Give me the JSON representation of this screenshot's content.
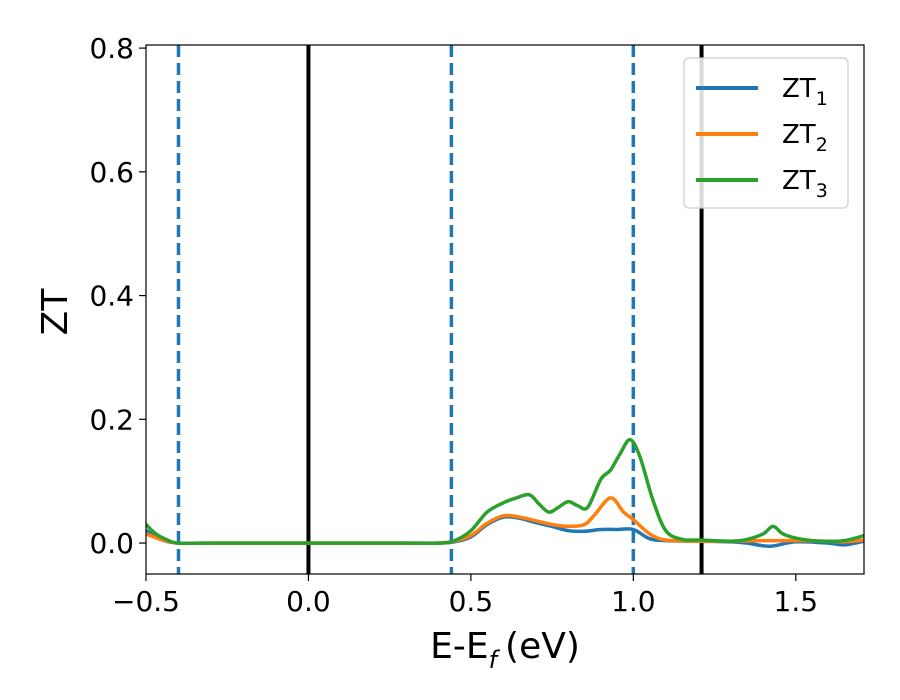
{
  "chart_data": {
    "type": "line",
    "xlabel": "E-E",
    "xlabel_sub": "f",
    "xlabel_unit": "(eV)",
    "ylabel": "ZT",
    "xlim": [
      -0.5,
      1.71
    ],
    "ylim": [
      -0.05,
      0.805
    ],
    "xticks": [
      -0.5,
      0.0,
      0.5,
      1.0,
      1.5
    ],
    "xtick_labels": [
      "−0.5",
      "0.0",
      "0.5",
      "1.0",
      "1.5"
    ],
    "yticks": [
      0.0,
      0.2,
      0.4,
      0.6,
      0.8
    ],
    "ytick_labels": [
      "0.0",
      "0.2",
      "0.4",
      "0.6",
      "0.8"
    ],
    "grid": false,
    "legend_placement": "top-right",
    "vlines": [
      {
        "x": -0.4,
        "style": "dashed",
        "color": "#1f77b4"
      },
      {
        "x": 0.0,
        "style": "solid",
        "color": "#000000"
      },
      {
        "x": 0.44,
        "style": "dashed",
        "color": "#1f77b4"
      },
      {
        "x": 1.0,
        "style": "dashed",
        "color": "#1f77b4"
      },
      {
        "x": 1.21,
        "style": "solid",
        "color": "#000000"
      }
    ],
    "series": [
      {
        "name": "ZT",
        "sub": "1",
        "color": "#1f77b4",
        "x": [
          -0.5,
          -0.45,
          -0.4,
          -0.3,
          0.0,
          0.3,
          0.4,
          0.45,
          0.5,
          0.55,
          0.6,
          0.65,
          0.7,
          0.75,
          0.8,
          0.85,
          0.9,
          0.95,
          1.0,
          1.05,
          1.1,
          1.2,
          1.3,
          1.35,
          1.42,
          1.5,
          1.6,
          1.65,
          1.71
        ],
        "y": [
          0.02,
          0.005,
          0.0,
          0.0,
          0.0,
          0.0,
          0.0,
          0.002,
          0.01,
          0.03,
          0.042,
          0.04,
          0.033,
          0.027,
          0.02,
          0.019,
          0.022,
          0.022,
          0.022,
          0.007,
          0.004,
          0.003,
          0.002,
          0.0,
          -0.005,
          0.002,
          0.0,
          -0.003,
          0.003
        ]
      },
      {
        "name": "ZT",
        "sub": "2",
        "color": "#ff7f0e",
        "x": [
          -0.5,
          -0.45,
          -0.4,
          -0.3,
          0.0,
          0.3,
          0.4,
          0.45,
          0.5,
          0.55,
          0.6,
          0.65,
          0.7,
          0.75,
          0.8,
          0.85,
          0.88,
          0.93,
          0.97,
          1.0,
          1.05,
          1.1,
          1.2,
          1.3,
          1.4,
          1.5,
          1.6,
          1.65,
          1.71
        ],
        "y": [
          0.015,
          0.005,
          0.0,
          0.0,
          0.0,
          0.0,
          0.0,
          0.003,
          0.012,
          0.032,
          0.044,
          0.042,
          0.036,
          0.03,
          0.027,
          0.03,
          0.045,
          0.073,
          0.05,
          0.038,
          0.015,
          0.005,
          0.003,
          0.003,
          0.004,
          0.004,
          0.003,
          0.002,
          0.005
        ]
      },
      {
        "name": "ZT",
        "sub": "3",
        "color": "#2ca02c",
        "x": [
          -0.5,
          -0.47,
          -0.43,
          -0.4,
          -0.3,
          0.0,
          0.3,
          0.4,
          0.45,
          0.5,
          0.55,
          0.6,
          0.64,
          0.68,
          0.71,
          0.74,
          0.77,
          0.8,
          0.83,
          0.86,
          0.9,
          0.93,
          0.96,
          0.99,
          1.02,
          1.06,
          1.1,
          1.15,
          1.2,
          1.3,
          1.35,
          1.4,
          1.43,
          1.46,
          1.5,
          1.55,
          1.6,
          1.65,
          1.71
        ],
        "y": [
          0.03,
          0.015,
          0.004,
          0.0,
          0.0,
          0.0,
          0.0,
          0.0,
          0.004,
          0.02,
          0.05,
          0.065,
          0.073,
          0.078,
          0.063,
          0.05,
          0.058,
          0.067,
          0.06,
          0.058,
          0.103,
          0.118,
          0.145,
          0.167,
          0.14,
          0.07,
          0.02,
          0.006,
          0.005,
          0.003,
          0.006,
          0.015,
          0.027,
          0.015,
          0.008,
          0.004,
          0.003,
          0.004,
          0.012
        ]
      }
    ]
  }
}
